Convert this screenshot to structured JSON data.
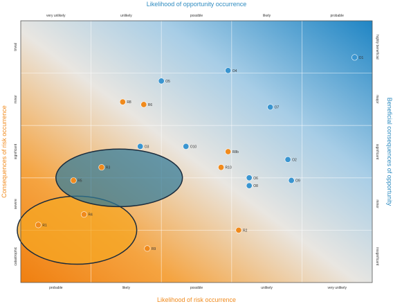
{
  "chart_data": {
    "type": "scatter",
    "title": "",
    "axes": {
      "top": {
        "label": "Likelihood of opportunity occurrence",
        "ticks": [
          "very unlikely",
          "unlikely",
          "possible",
          "likely",
          "probable"
        ],
        "color": "#2e8bc0"
      },
      "bottom": {
        "label": "Likelihood of risk occurrence",
        "ticks": [
          "probable",
          "likely",
          "possible",
          "unlikely",
          "very unlikely"
        ],
        "color": "#f08a1c"
      },
      "left": {
        "label": "Consequences of risk occurrence",
        "ticks": [
          "catastrophic",
          "severe",
          "significant",
          "minor",
          "trivial"
        ],
        "color": "#f08a1c"
      },
      "right": {
        "label": "Beneficial consequences of opportunity",
        "ticks": [
          "highly beneficial",
          "major",
          "significant",
          "minor",
          "insignificant"
        ],
        "color": "#2e8bc0"
      }
    },
    "xlim": [
      0,
      5
    ],
    "ylim": [
      0,
      5
    ],
    "grid": true,
    "series": [
      {
        "color": "#f08a1c",
        "points": [
          {
            "label": "R8",
            "x": 1.45,
            "y": 3.45
          },
          {
            "label": "R6",
            "x": 1.75,
            "y": 3.4
          },
          {
            "label": "R5",
            "x": 0.75,
            "y": 1.95
          },
          {
            "label": "R3",
            "x": 1.15,
            "y": 2.2
          },
          {
            "label": "R4",
            "x": 0.9,
            "y": 1.3
          },
          {
            "label": "R1",
            "x": 0.25,
            "y": 1.1
          },
          {
            "label": "R9",
            "x": 1.8,
            "y": 0.65
          },
          {
            "label": "R8b",
            "x": 2.95,
            "y": 2.5
          },
          {
            "label": "R10",
            "x": 2.85,
            "y": 2.2
          },
          {
            "label": "R2",
            "x": 3.1,
            "y": 1.0
          }
        ]
      },
      {
        "color": "#3a95d0",
        "points": [
          {
            "label": "O1",
            "x": 4.75,
            "y": 4.3
          },
          {
            "label": "O4",
            "x": 2.95,
            "y": 4.05
          },
          {
            "label": "O5",
            "x": 2.0,
            "y": 3.85
          },
          {
            "label": "O7",
            "x": 3.55,
            "y": 3.35
          },
          {
            "label": "O3",
            "x": 1.7,
            "y": 2.6
          },
          {
            "label": "O10",
            "x": 2.35,
            "y": 2.6
          },
          {
            "label": "O2",
            "x": 3.8,
            "y": 2.35
          },
          {
            "label": "O6",
            "x": 3.25,
            "y": 2.0
          },
          {
            "label": "O8",
            "x": 3.25,
            "y": 1.85
          },
          {
            "label": "O9",
            "x": 3.85,
            "y": 1.95
          }
        ]
      }
    ],
    "regions": [
      {
        "color": "#f5a623",
        "stroke": "#1a2b3c",
        "cx": 0.8,
        "cy": 1.0,
        "rx": 0.85,
        "ry": 0.65
      },
      {
        "color": "#2f7a9a",
        "stroke": "#1a2b3c",
        "cx": 1.4,
        "cy": 2.0,
        "rx": 0.9,
        "ry": 0.55
      }
    ]
  }
}
